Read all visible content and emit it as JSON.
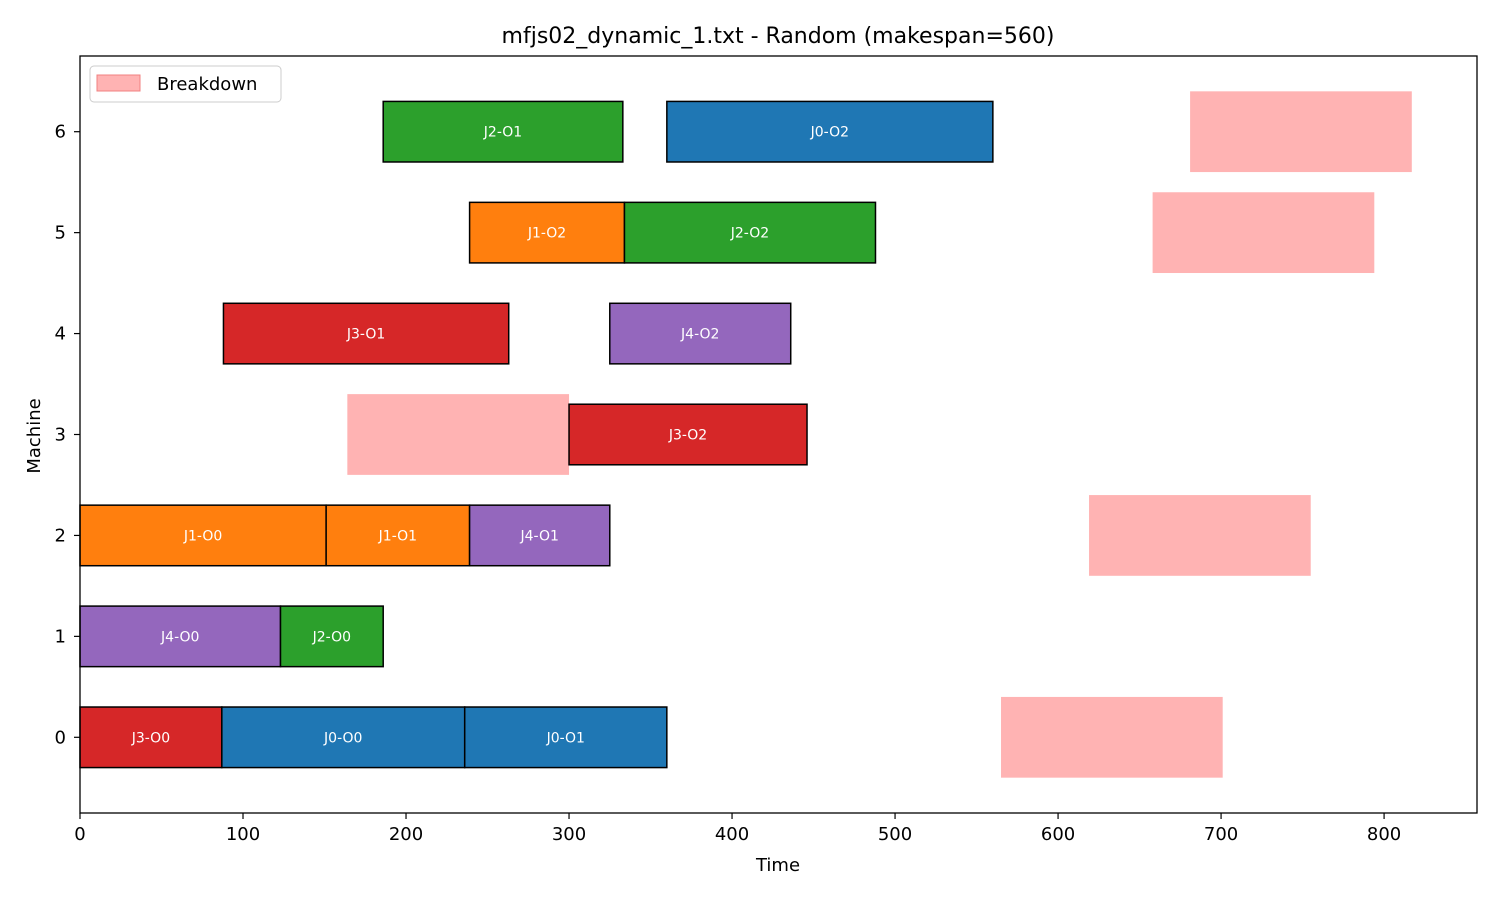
{
  "chart_data": {
    "type": "gantt",
    "title": "mfjs02_dynamic_1.txt - Random (makespan=560)",
    "xlabel": "Time",
    "ylabel": "Machine",
    "xlim": [
      0,
      857
    ],
    "ylim": [
      -0.75,
      6.75
    ],
    "xticks": [
      0,
      100,
      200,
      300,
      400,
      500,
      600,
      700,
      800
    ],
    "yticks": [
      0,
      1,
      2,
      3,
      4,
      5,
      6
    ],
    "legend": {
      "position": "top-left",
      "entries": [
        {
          "label": "Breakdown",
          "color": "#ffb3b3"
        }
      ]
    },
    "colors": {
      "J0": "#1f77b4",
      "J1": "#ff7f0e",
      "J2": "#2ca02c",
      "J3": "#d62728",
      "J4": "#9467bd",
      "breakdown": "#ffb3b3"
    },
    "operations": [
      {
        "label": "J3-O0",
        "job": "J3",
        "machine": 0,
        "start": 0,
        "end": 87
      },
      {
        "label": "J0-O0",
        "job": "J0",
        "machine": 0,
        "start": 87,
        "end": 236
      },
      {
        "label": "J0-O1",
        "job": "J0",
        "machine": 0,
        "start": 236,
        "end": 360
      },
      {
        "label": "J4-O0",
        "job": "J4",
        "machine": 1,
        "start": 0,
        "end": 123
      },
      {
        "label": "J2-O0",
        "job": "J2",
        "machine": 1,
        "start": 123,
        "end": 186
      },
      {
        "label": "J1-O0",
        "job": "J1",
        "machine": 2,
        "start": 0,
        "end": 151
      },
      {
        "label": "J1-O1",
        "job": "J1",
        "machine": 2,
        "start": 151,
        "end": 239
      },
      {
        "label": "J4-O1",
        "job": "J4",
        "machine": 2,
        "start": 239,
        "end": 325
      },
      {
        "label": "J3-O2",
        "job": "J3",
        "machine": 3,
        "start": 300,
        "end": 446
      },
      {
        "label": "J3-O1",
        "job": "J3",
        "machine": 4,
        "start": 88,
        "end": 263
      },
      {
        "label": "J4-O2",
        "job": "J4",
        "machine": 4,
        "start": 325,
        "end": 436
      },
      {
        "label": "J1-O2",
        "job": "J1",
        "machine": 5,
        "start": 239,
        "end": 334
      },
      {
        "label": "J2-O2",
        "job": "J2",
        "machine": 5,
        "start": 334,
        "end": 488
      },
      {
        "label": "J2-O1",
        "job": "J2",
        "machine": 6,
        "start": 186,
        "end": 333
      },
      {
        "label": "J0-O2",
        "job": "J0",
        "machine": 6,
        "start": 360,
        "end": 560
      }
    ],
    "breakdowns": [
      {
        "machine": 0,
        "start": 565,
        "end": 701
      },
      {
        "machine": 2,
        "start": 619,
        "end": 755
      },
      {
        "machine": 3,
        "start": 164,
        "end": 300
      },
      {
        "machine": 5,
        "start": 658,
        "end": 794
      },
      {
        "machine": 6,
        "start": 681,
        "end": 817
      }
    ]
  }
}
